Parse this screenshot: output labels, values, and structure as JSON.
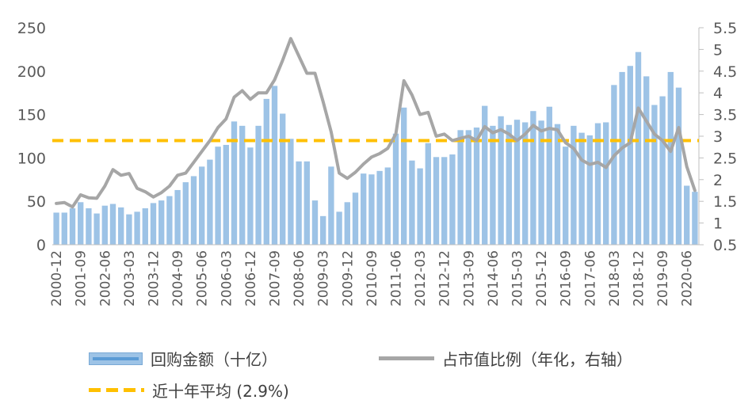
{
  "chart_data": {
    "type": "bar",
    "title": "",
    "left_axis": {
      "min": 0,
      "max": 250,
      "ticks": [
        "0",
        "50",
        "100",
        "150",
        "200",
        "250"
      ]
    },
    "right_axis": {
      "min": 0.5,
      "max": 5.5,
      "ticks": [
        "0.5",
        "1",
        "1.5",
        "2",
        "2.5",
        "3",
        "3.5",
        "4",
        "4.5",
        "5",
        "5.5"
      ]
    },
    "x_tick_labels": [
      "2000-12",
      "2001-09",
      "2002-06",
      "2003-03",
      "2003-12",
      "2004-09",
      "2005-06",
      "2006-03",
      "2006-12",
      "2007-09",
      "2008-06",
      "2009-03",
      "2009-12",
      "2010-09",
      "2011-06",
      "2012-03",
      "2012-12",
      "2013-09",
      "2014-06",
      "2015-03",
      "2015-12",
      "2016-09",
      "2017-06",
      "2018-03",
      "2018-12",
      "2019-09",
      "2020-06"
    ],
    "series": [
      {
        "name": "回购金额（十亿）",
        "type": "bar",
        "axis": "left",
        "color": "#9dc3e6",
        "values": [
          37,
          37,
          42,
          49,
          42,
          36,
          45,
          47,
          43,
          35,
          38,
          42,
          48,
          51,
          56,
          63,
          72,
          79,
          90,
          98,
          113,
          115,
          142,
          137,
          112,
          137,
          168,
          183,
          151,
          122,
          96,
          96,
          51,
          33,
          90,
          38,
          49,
          60,
          82,
          81,
          85,
          89,
          128,
          158,
          97,
          88,
          117,
          101,
          101,
          104,
          132,
          132,
          135,
          160,
          137,
          148,
          138,
          144,
          141,
          154,
          143,
          159,
          139,
          113,
          137,
          129,
          126,
          140,
          141,
          184,
          199,
          206,
          222,
          194,
          161,
          171,
          199,
          181,
          68,
          61
        ]
      },
      {
        "name": "占市值比例（年化，右轴）",
        "type": "line",
        "axis": "right",
        "color": "#a6a6a6",
        "values": [
          1.45,
          1.47,
          1.37,
          1.65,
          1.58,
          1.57,
          1.85,
          2.23,
          2.1,
          2.14,
          1.8,
          1.72,
          1.6,
          1.7,
          1.85,
          2.1,
          2.15,
          2.4,
          2.65,
          2.9,
          3.2,
          3.4,
          3.9,
          4.05,
          3.85,
          4.0,
          4.0,
          4.3,
          4.75,
          5.25,
          4.85,
          4.45,
          4.45,
          3.8,
          3.1,
          2.15,
          2.03,
          2.17,
          2.36,
          2.52,
          2.6,
          2.72,
          3.05,
          4.28,
          3.95,
          3.5,
          3.55,
          3.0,
          3.05,
          2.9,
          2.95,
          3.0,
          2.9,
          3.22,
          3.08,
          3.15,
          3.05,
          2.9,
          3.05,
          3.25,
          3.12,
          3.18,
          3.15,
          2.85,
          2.72,
          2.45,
          2.35,
          2.4,
          2.28,
          2.55,
          2.73,
          2.85,
          3.65,
          3.35,
          3.05,
          2.9,
          2.65,
          3.2,
          2.3,
          1.75
        ]
      },
      {
        "name": "近十年平均 (2.9%)",
        "type": "hline",
        "axis": "right",
        "color": "#ffc000",
        "value": 2.9
      }
    ]
  },
  "legend": {
    "bars_label": "回购金额（十亿）",
    "line_label": "占市值比例（年化，右轴）",
    "avg_label": "近十年平均  (2.9%)"
  }
}
